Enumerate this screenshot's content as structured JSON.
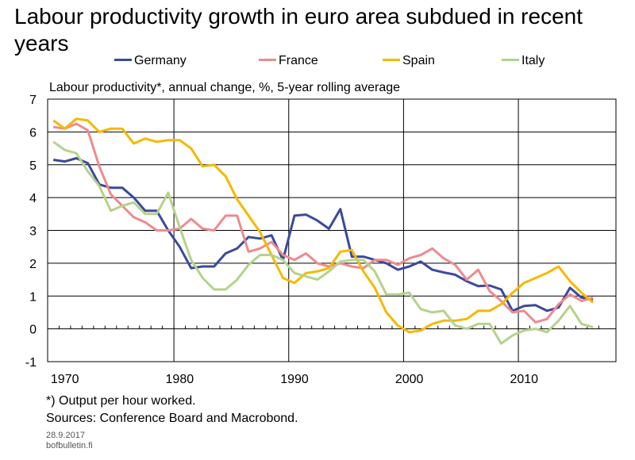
{
  "title": "Labour productivity growth in euro area subdued in recent years",
  "legend": [
    {
      "name": "Germany",
      "color": "#3a4a9c"
    },
    {
      "name": "France",
      "color": "#ee8a8f"
    },
    {
      "name": "Spain",
      "color": "#f5b800"
    },
    {
      "name": "Italy",
      "color": "#b5d28c"
    }
  ],
  "subtitle": "Labour productivity*, annual change, %, 5-year rolling average",
  "footnote": "*) Output per hour worked.",
  "sources": "Sources: Conference Board and Macrobond.",
  "date": "28.9.2017",
  "site": "bofbulletin.fi",
  "chart_data": {
    "type": "line",
    "title": "Labour productivity growth in euro area subdued in recent years",
    "ylabel": "Labour productivity*, annual change, %, 5-year rolling average",
    "xlim": [
      1968.5,
      2018
    ],
    "ylim": [
      -1,
      7
    ],
    "x_ticks": [
      1970,
      1980,
      1990,
      2000,
      2010
    ],
    "y_ticks": [
      -1,
      0,
      1,
      2,
      3,
      4,
      5,
      6,
      7
    ],
    "grid": true,
    "legend_position": "top",
    "x": [
      1969,
      1970,
      1971,
      1972,
      1973,
      1974,
      1975,
      1976,
      1977,
      1978,
      1979,
      1980,
      1981,
      1982,
      1983,
      1984,
      1985,
      1986,
      1987,
      1988,
      1989,
      1990,
      1991,
      1992,
      1993,
      1994,
      1995,
      1996,
      1997,
      1998,
      1999,
      2000,
      2001,
      2002,
      2003,
      2004,
      2005,
      2006,
      2007,
      2008,
      2009,
      2010,
      2011,
      2012,
      2013,
      2014,
      2015,
      2016
    ],
    "series": [
      {
        "name": "Germany",
        "color": "#3a4a9c",
        "values": [
          5.15,
          5.1,
          5.2,
          5.05,
          4.4,
          4.3,
          4.3,
          4.0,
          3.6,
          3.6,
          3.0,
          2.5,
          1.85,
          1.9,
          1.9,
          2.3,
          2.45,
          2.8,
          2.75,
          2.85,
          2.1,
          3.45,
          3.48,
          3.3,
          3.05,
          3.65,
          2.2,
          2.2,
          2.1,
          2.0,
          1.8,
          1.9,
          2.05,
          1.8,
          1.72,
          1.65,
          1.45,
          1.3,
          1.32,
          1.2,
          0.55,
          0.7,
          0.72,
          0.55,
          0.65,
          1.25,
          0.95,
          0.9
        ]
      },
      {
        "name": "France",
        "color": "#ee8a8f",
        "values": [
          6.15,
          6.1,
          6.25,
          6.05,
          4.95,
          4.1,
          3.75,
          3.4,
          3.25,
          3.0,
          3.0,
          3.05,
          3.35,
          3.05,
          3.0,
          3.45,
          3.45,
          2.35,
          2.45,
          2.65,
          2.25,
          2.1,
          2.3,
          2.0,
          1.9,
          2.0,
          1.9,
          1.85,
          2.1,
          2.1,
          1.95,
          2.15,
          2.25,
          2.45,
          2.15,
          1.95,
          1.5,
          1.8,
          1.15,
          0.85,
          0.5,
          0.55,
          0.2,
          0.3,
          0.75,
          1.05,
          0.85,
          0.95
        ]
      },
      {
        "name": "Spain",
        "color": "#f5b800",
        "values": [
          6.35,
          6.1,
          6.4,
          6.35,
          6.0,
          6.1,
          6.1,
          5.65,
          5.8,
          5.7,
          5.75,
          5.75,
          5.5,
          4.95,
          5.0,
          4.65,
          3.95,
          3.45,
          2.95,
          2.25,
          1.55,
          1.4,
          1.7,
          1.75,
          1.85,
          2.35,
          2.4,
          1.75,
          1.25,
          0.5,
          0.1,
          -0.1,
          -0.05,
          0.15,
          0.25,
          0.25,
          0.3,
          0.55,
          0.55,
          0.75,
          1.1,
          1.4,
          1.55,
          1.7,
          1.9,
          1.45,
          1.1,
          0.8
        ]
      },
      {
        "name": "Italy",
        "color": "#b5d28c",
        "values": [
          5.7,
          5.45,
          5.35,
          4.8,
          4.35,
          3.6,
          3.75,
          3.85,
          3.5,
          3.5,
          4.15,
          3.1,
          2.1,
          1.55,
          1.2,
          1.2,
          1.5,
          1.95,
          2.25,
          2.25,
          2.1,
          1.7,
          1.6,
          1.5,
          1.75,
          2.05,
          2.1,
          2.1,
          1.75,
          1.05,
          1.05,
          1.1,
          0.6,
          0.5,
          0.55,
          0.1,
          0.0,
          0.15,
          0.15,
          -0.45,
          -0.2,
          -0.05,
          0.0,
          -0.1,
          0.25,
          0.7,
          0.15,
          0.05
        ]
      }
    ]
  }
}
